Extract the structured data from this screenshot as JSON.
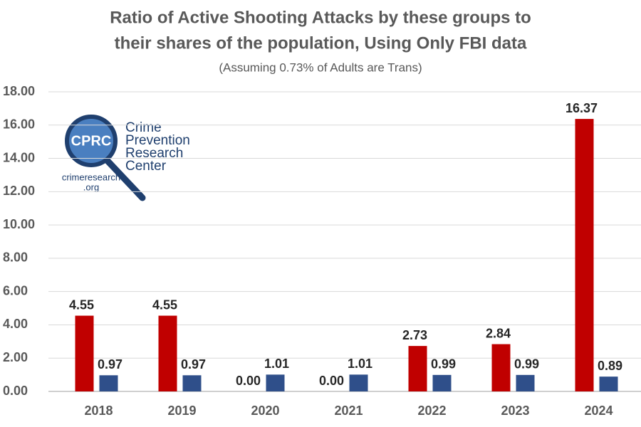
{
  "chart_data": {
    "type": "bar",
    "title": [
      "Ratio of Active Shooting Attacks by these groups to",
      "their shares of the population, Using Only FBI data"
    ],
    "subtitle": "(Assuming 0.73% of Adults are Trans)",
    "categories": [
      "2018",
      "2019",
      "2020",
      "2021",
      "2022",
      "2023",
      "2024"
    ],
    "series": [
      {
        "color": "#c00000",
        "values": [
          4.55,
          4.55,
          0,
          0,
          2.73,
          2.84,
          16.37
        ],
        "value_labels": [
          "4.55",
          "4.55",
          "0.00",
          "0.00",
          "2.73",
          "2.84",
          "16.37"
        ]
      },
      {
        "color": "#2f4f8a",
        "values": [
          0.97,
          0.97,
          1.01,
          1.01,
          0.99,
          0.99,
          0.89
        ],
        "value_labels": [
          "0.97",
          "0.97",
          "1.01",
          "1.01",
          "0.99",
          "0.99",
          "0.89"
        ]
      }
    ],
    "ylim": [
      0,
      18
    ],
    "yticks": [
      {
        "value": 0,
        "label": "0.00"
      },
      {
        "value": 2,
        "label": "2.00"
      },
      {
        "value": 4,
        "label": "4.00"
      },
      {
        "value": 6,
        "label": "6.00"
      },
      {
        "value": 8,
        "label": "8.00"
      },
      {
        "value": 10,
        "label": "10.00"
      },
      {
        "value": 12,
        "label": "12.00"
      },
      {
        "value": 14,
        "label": "14.00"
      },
      {
        "value": 16,
        "label": "16.00"
      },
      {
        "value": 18,
        "label": "18.00"
      }
    ],
    "grid": true,
    "logo": {
      "mark": "CPRC",
      "name": [
        "Crime",
        "Prevention",
        "Research",
        "Center"
      ],
      "url": [
        "crimeresearch",
        ".org"
      ]
    }
  }
}
